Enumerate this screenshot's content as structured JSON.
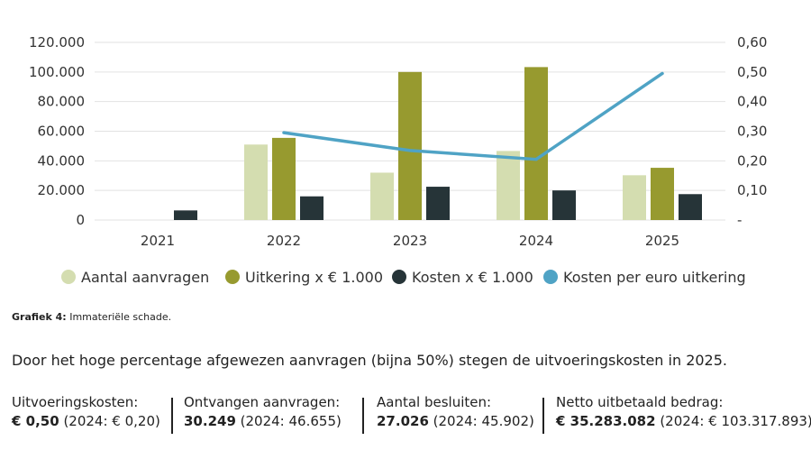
{
  "chart_data": {
    "type": "bar",
    "categories": [
      "2021",
      "2022",
      "2023",
      "2024",
      "2025"
    ],
    "series": [
      {
        "name": "Aantal aanvragen",
        "axis": "left",
        "type": "bar",
        "color": "#d4ddb0",
        "values": [
          0,
          51000,
          32000,
          46655,
          30249
        ]
      },
      {
        "name": "Uitkering x € 1.000",
        "axis": "left",
        "type": "bar",
        "color": "#979a2f",
        "values": [
          0,
          55500,
          100000,
          103318,
          35283
        ]
      },
      {
        "name": "Kosten x € 1.000",
        "axis": "left",
        "type": "bar",
        "color": "#263438",
        "values": [
          6500,
          16000,
          22500,
          20000,
          17500
        ]
      },
      {
        "name": "Kosten per euro uitkering",
        "axis": "right",
        "type": "line",
        "color": "#4fa3c5",
        "values": [
          null,
          0.295,
          0.235,
          0.205,
          0.495
        ]
      }
    ],
    "y_left": {
      "min": 0,
      "max": 120000,
      "ticks": [
        0,
        20000,
        40000,
        60000,
        80000,
        100000,
        120000
      ],
      "tick_labels": [
        "0",
        "20.000",
        "40.000",
        "60.000",
        "80.000",
        "100.000",
        "120.000"
      ]
    },
    "y_right": {
      "min": 0,
      "max": 0.6,
      "ticks": [
        0,
        0.1,
        0.2,
        0.3,
        0.4,
        0.5,
        0.6
      ],
      "tick_labels": [
        "-",
        "0,10",
        "0,20",
        "0,30",
        "0,40",
        "0,50",
        "0,60"
      ]
    },
    "grid": true,
    "legend": "bottom"
  },
  "caption": {
    "bold": "Grafiek 4:",
    "text": " Immateriële schade."
  },
  "sentence": "Door het hoge percentage afgewezen aanvragen (bijna 50%) stegen de uitvoeringskosten in 2025.",
  "stats": [
    {
      "label": "Uitvoeringskosten:",
      "value": "€ 0,50",
      "note": " (2024: € 0,20)"
    },
    {
      "label": "Ontvangen aanvragen:",
      "value": "30.249",
      "note": " (2024: 46.655)"
    },
    {
      "label": "Aantal besluiten:",
      "value": "27.026",
      "note": " (2024: 45.902)"
    },
    {
      "label": "Netto uitbetaald bedrag:",
      "value": "€ 35.283.082",
      "note": " (2024: € 103.317.893)"
    }
  ]
}
